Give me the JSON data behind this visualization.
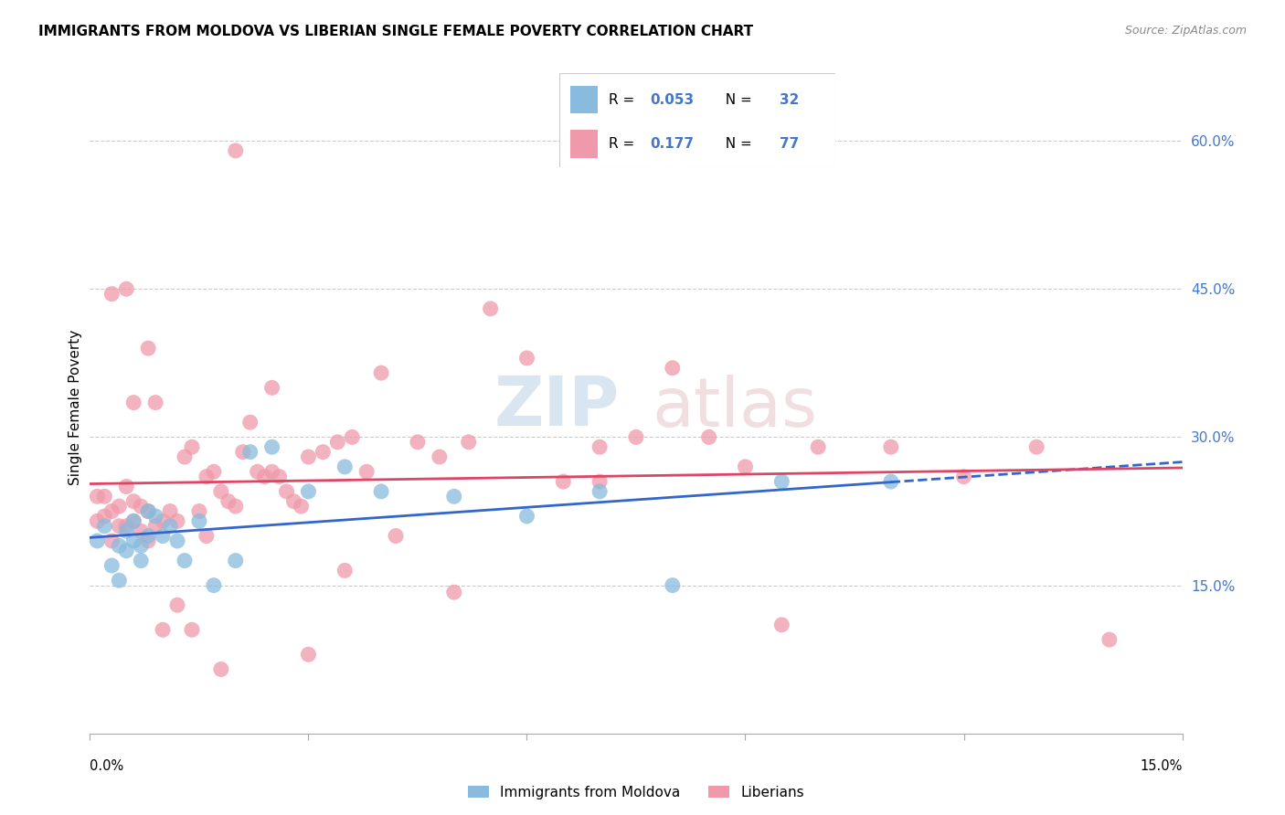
{
  "title": "IMMIGRANTS FROM MOLDOVA VS LIBERIAN SINGLE FEMALE POVERTY CORRELATION CHART",
  "source": "Source: ZipAtlas.com",
  "ylabel": "Single Female Poverty",
  "right_ytick_vals": [
    0.15,
    0.3,
    0.45,
    0.6
  ],
  "right_ytick_labels": [
    "15.0%",
    "30.0%",
    "45.0%",
    "60.0%"
  ],
  "xlim": [
    0.0,
    0.15
  ],
  "ylim": [
    0.0,
    0.66
  ],
  "blue_color": "#88bbdd",
  "pink_color": "#f099aa",
  "blue_line_color": "#3366cc",
  "pink_line_color": "#dd4466",
  "moldova_x": [
    0.001,
    0.002,
    0.003,
    0.004,
    0.004,
    0.005,
    0.005,
    0.006,
    0.006,
    0.007,
    0.007,
    0.008,
    0.008,
    0.009,
    0.01,
    0.011,
    0.012,
    0.013,
    0.015,
    0.017,
    0.02,
    0.022,
    0.025,
    0.03,
    0.035,
    0.04,
    0.05,
    0.06,
    0.07,
    0.08,
    0.095,
    0.11
  ],
  "moldova_y": [
    0.195,
    0.21,
    0.17,
    0.19,
    0.155,
    0.205,
    0.185,
    0.215,
    0.195,
    0.19,
    0.175,
    0.225,
    0.2,
    0.22,
    0.2,
    0.21,
    0.195,
    0.175,
    0.215,
    0.15,
    0.175,
    0.285,
    0.29,
    0.245,
    0.27,
    0.245,
    0.24,
    0.22,
    0.245,
    0.15,
    0.255,
    0.255
  ],
  "liberian_x": [
    0.001,
    0.001,
    0.002,
    0.002,
    0.003,
    0.003,
    0.004,
    0.004,
    0.005,
    0.005,
    0.006,
    0.006,
    0.007,
    0.007,
    0.008,
    0.008,
    0.009,
    0.01,
    0.011,
    0.012,
    0.013,
    0.014,
    0.015,
    0.016,
    0.017,
    0.018,
    0.019,
    0.02,
    0.021,
    0.022,
    0.023,
    0.024,
    0.025,
    0.026,
    0.027,
    0.028,
    0.029,
    0.03,
    0.032,
    0.034,
    0.036,
    0.038,
    0.04,
    0.042,
    0.045,
    0.048,
    0.052,
    0.055,
    0.06,
    0.065,
    0.07,
    0.075,
    0.08,
    0.085,
    0.09,
    0.1,
    0.11,
    0.12,
    0.13,
    0.14,
    0.003,
    0.005,
    0.006,
    0.008,
    0.009,
    0.01,
    0.012,
    0.014,
    0.016,
    0.018,
    0.02,
    0.025,
    0.03,
    0.035,
    0.05,
    0.07,
    0.095
  ],
  "liberian_y": [
    0.24,
    0.215,
    0.24,
    0.22,
    0.225,
    0.195,
    0.23,
    0.21,
    0.25,
    0.21,
    0.235,
    0.215,
    0.23,
    0.205,
    0.225,
    0.195,
    0.21,
    0.215,
    0.225,
    0.215,
    0.28,
    0.29,
    0.225,
    0.26,
    0.265,
    0.245,
    0.235,
    0.23,
    0.285,
    0.315,
    0.265,
    0.26,
    0.265,
    0.26,
    0.245,
    0.235,
    0.23,
    0.28,
    0.285,
    0.295,
    0.3,
    0.265,
    0.365,
    0.2,
    0.295,
    0.28,
    0.295,
    0.43,
    0.38,
    0.255,
    0.29,
    0.3,
    0.37,
    0.3,
    0.27,
    0.29,
    0.29,
    0.26,
    0.29,
    0.095,
    0.445,
    0.45,
    0.335,
    0.39,
    0.335,
    0.105,
    0.13,
    0.105,
    0.2,
    0.065,
    0.59,
    0.35,
    0.08,
    0.165,
    0.143,
    0.255,
    0.11
  ],
  "bottom_legend": [
    "Immigrants from Moldova",
    "Liberians"
  ]
}
